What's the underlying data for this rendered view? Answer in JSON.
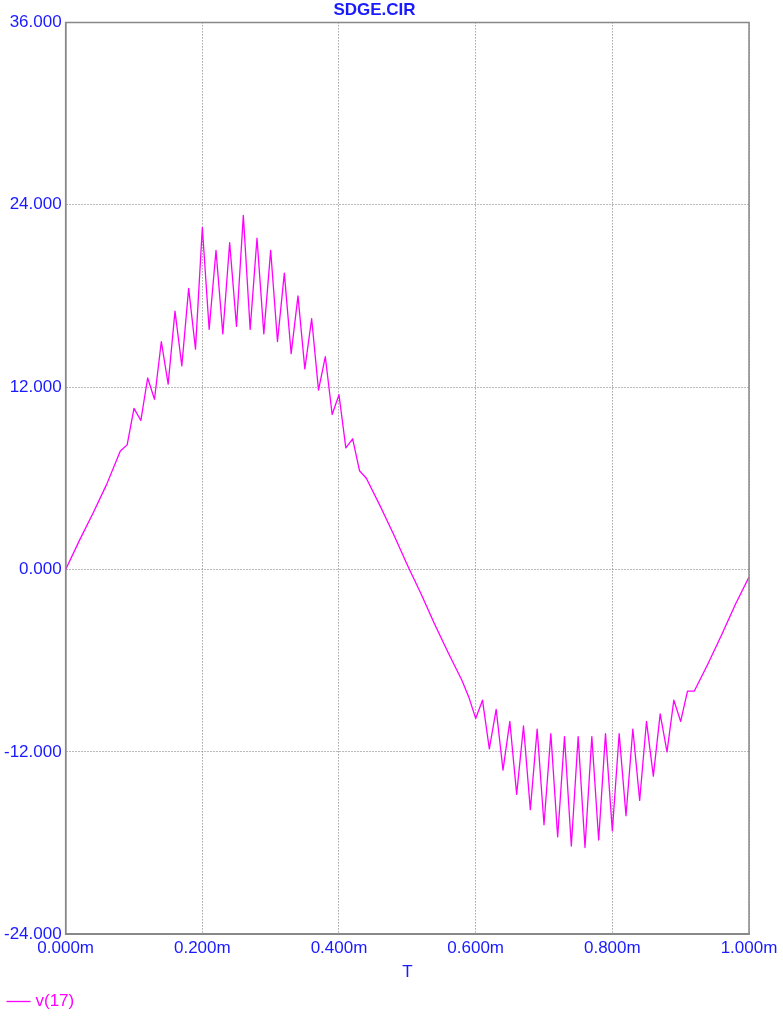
{
  "chart_data": {
    "type": "line",
    "title": "SDGE.CIR",
    "xlabel": "T",
    "xlim": [
      0,
      1
    ],
    "xticks": [
      {
        "value": 0,
        "label": "0.000m"
      },
      {
        "value": 0.2,
        "label": "0.200m"
      },
      {
        "value": 0.4,
        "label": "0.400m"
      },
      {
        "value": 0.6,
        "label": "0.600m"
      },
      {
        "value": 0.8,
        "label": "0.800m"
      },
      {
        "value": 1,
        "label": "1.000m"
      }
    ],
    "ylim": [
      -24,
      36
    ],
    "yticks": [
      {
        "value": -24,
        "label": "-24.000"
      },
      {
        "value": -12,
        "label": "-12.000"
      },
      {
        "value": 0,
        "label": "0.000"
      },
      {
        "value": 12,
        "label": "12.000"
      },
      {
        "value": 24,
        "label": "24.000"
      },
      {
        "value": 36,
        "label": "36.000"
      }
    ],
    "grid": true,
    "legend": "bottom left",
    "marker": "none",
    "line_style": "solid",
    "series": [
      {
        "name": "v(17)",
        "color": "#ff00ff",
        "x": [
          0,
          0.02,
          0.04,
          0.06,
          0.08,
          0.09,
          0.1,
          0.11,
          0.12,
          0.13,
          0.14,
          0.15,
          0.16,
          0.17,
          0.18,
          0.19,
          0.2,
          0.21,
          0.22,
          0.23,
          0.24,
          0.25,
          0.26,
          0.27,
          0.28,
          0.29,
          0.3,
          0.31,
          0.32,
          0.33,
          0.34,
          0.35,
          0.36,
          0.37,
          0.38,
          0.39,
          0.4,
          0.41,
          0.42,
          0.43,
          0.44,
          0.46,
          0.48,
          0.5,
          0.52,
          0.54,
          0.56,
          0.58,
          0.59,
          0.6,
          0.61,
          0.62,
          0.63,
          0.64,
          0.65,
          0.66,
          0.67,
          0.68,
          0.69,
          0.7,
          0.71,
          0.72,
          0.73,
          0.74,
          0.75,
          0.76,
          0.77,
          0.78,
          0.79,
          0.8,
          0.81,
          0.82,
          0.83,
          0.84,
          0.85,
          0.86,
          0.87,
          0.88,
          0.89,
          0.9,
          0.91,
          0.92,
          0.94,
          0.96,
          0.98,
          1
        ],
        "values": [
          0,
          1.9,
          3.7,
          5.6,
          7.8,
          8.2,
          10.6,
          9.8,
          12.6,
          11.2,
          15.0,
          12.2,
          17.0,
          13.4,
          18.5,
          14.5,
          22.5,
          15.8,
          21.0,
          15.5,
          21.5,
          16.0,
          23.3,
          15.8,
          21.8,
          15.5,
          21.0,
          15.0,
          19.5,
          14.2,
          18.0,
          13.2,
          16.5,
          11.8,
          14.0,
          10.2,
          11.5,
          8.0,
          8.6,
          6.5,
          6.0,
          4.2,
          2.3,
          0.3,
          -1.6,
          -3.6,
          -5.5,
          -7.3,
          -8.4,
          -9.8,
          -8.6,
          -11.8,
          -9.2,
          -13.2,
          -10.0,
          -14.8,
          -10.3,
          -15.8,
          -10.5,
          -16.8,
          -10.8,
          -17.6,
          -11.0,
          -18.2,
          -11.0,
          -18.3,
          -11.0,
          -17.8,
          -10.8,
          -17.2,
          -10.8,
          -16.2,
          -10.5,
          -15.2,
          -10.0,
          -13.6,
          -9.5,
          -12.0,
          -8.6,
          -10.0,
          -8.0,
          -8.0,
          -6.2,
          -4.3,
          -2.3,
          -0.5
        ]
      }
    ]
  }
}
